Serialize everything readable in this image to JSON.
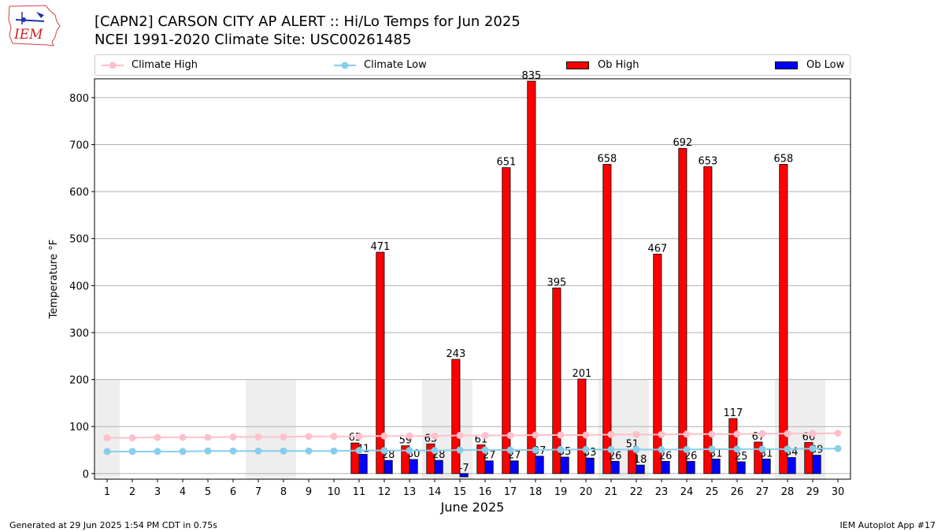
{
  "header": {
    "title_line1": "[CAPN2] CARSON CITY AP ALERT :: Hi/Lo Temps for Jun 2025",
    "title_line2": "NCEI 1991-2020 Climate Site: USC00261485",
    "logo_text": "IEM"
  },
  "legend": {
    "climate_high": "Climate High",
    "climate_low": "Climate Low",
    "ob_high": "Ob High",
    "ob_low": "Ob Low"
  },
  "colors": {
    "climate_high": "#ffc0cb",
    "climate_low": "#87ceeb",
    "ob_high": "#ff0000",
    "ob_low": "#0000ff",
    "weekend_shade": "#eeeeee",
    "grid": "#b0b0b0"
  },
  "footer": {
    "left": "Generated at 29 Jun 2025 1:54 PM CDT in 0.75s",
    "right": "IEM Autoplot App #17"
  },
  "chart_data": {
    "type": "bar",
    "title": "[CAPN2] CARSON CITY AP ALERT :: Hi/Lo Temps for Jun 2025",
    "subtitle": "NCEI 1991-2020 Climate Site: USC00261485",
    "xlabel": "June 2025",
    "ylabel": "Temperature °F",
    "ylim": [
      -12,
      840
    ],
    "yticks": [
      0,
      100,
      200,
      300,
      400,
      500,
      600,
      700,
      800
    ],
    "grid": true,
    "legend_position": "top",
    "x": [
      1,
      2,
      3,
      4,
      5,
      6,
      7,
      8,
      9,
      10,
      11,
      12,
      13,
      14,
      15,
      16,
      17,
      18,
      19,
      20,
      21,
      22,
      23,
      24,
      25,
      26,
      27,
      28,
      29,
      30
    ],
    "weekend_days": [
      1,
      7,
      8,
      14,
      15,
      21,
      22,
      28,
      29
    ],
    "weekend_shade_top": 200,
    "series": [
      {
        "name": "Ob High",
        "kind": "bar",
        "values": [
          null,
          null,
          null,
          null,
          null,
          null,
          null,
          null,
          null,
          null,
          65,
          471,
          59,
          63,
          243,
          61,
          651,
          835,
          395,
          201,
          658,
          51,
          467,
          692,
          653,
          117,
          67,
          658,
          66,
          null
        ]
      },
      {
        "name": "Ob Low",
        "kind": "bar",
        "values": [
          null,
          null,
          null,
          null,
          null,
          null,
          null,
          null,
          null,
          null,
          41,
          28,
          30,
          28,
          -7,
          27,
          27,
          37,
          35,
          33,
          26,
          18,
          26,
          26,
          31,
          25,
          31,
          34,
          39,
          null
        ]
      },
      {
        "name": "Climate High",
        "kind": "line",
        "values": [
          76,
          76,
          77,
          77,
          77,
          78,
          78,
          78,
          79,
          79,
          79,
          80,
          80,
          80,
          81,
          81,
          81,
          82,
          82,
          82,
          83,
          83,
          83,
          84,
          84,
          84,
          85,
          85,
          85,
          86
        ]
      },
      {
        "name": "Climate Low",
        "kind": "line",
        "values": [
          47,
          47,
          47,
          47,
          48,
          48,
          48,
          48,
          48,
          48,
          49,
          49,
          49,
          49,
          50,
          50,
          50,
          50,
          51,
          51,
          51,
          51,
          51,
          51,
          52,
          52,
          52,
          52,
          53,
          53
        ]
      }
    ]
  }
}
